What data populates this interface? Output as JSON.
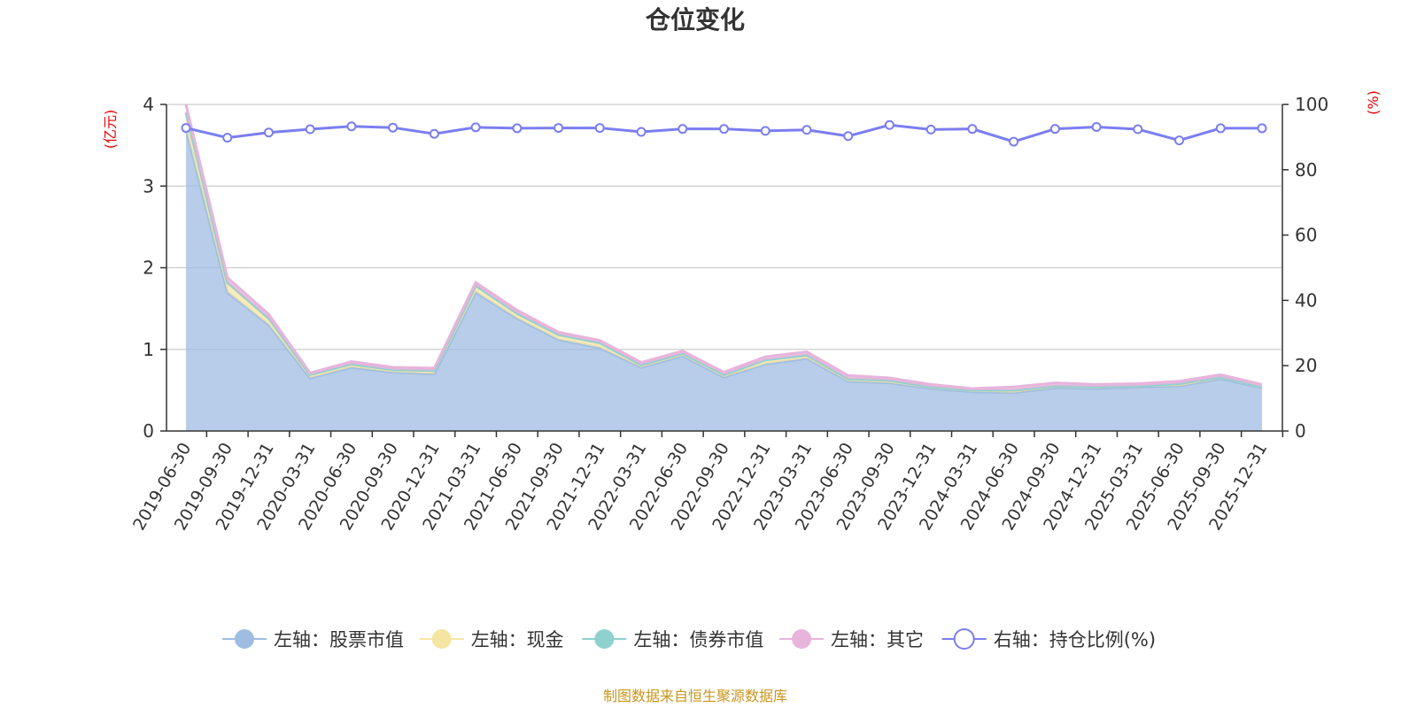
{
  "chart_data": {
    "type": "area",
    "title": "仓位变化",
    "left_axis_unit": "(亿元)",
    "right_axis_unit": "(%)",
    "left_ylim": [
      0,
      4
    ],
    "left_ticks": [
      "0",
      "1",
      "2",
      "3",
      "4"
    ],
    "right_ylim": [
      0,
      100
    ],
    "right_ticks": [
      "0",
      "20",
      "40",
      "60",
      "80",
      "100"
    ],
    "grid": true,
    "legend_position": "bottom",
    "categories": [
      "2019-06-30",
      "2019-09-30",
      "2019-12-31",
      "2020-03-31",
      "2020-06-30",
      "2020-09-30",
      "2020-12-31",
      "2021-03-31",
      "2021-06-30",
      "2021-09-30",
      "2021-12-31",
      "2022-03-31",
      "2022-06-30",
      "2022-09-30",
      "2022-12-31",
      "2023-03-31",
      "2023-06-30",
      "2023-09-30",
      "2023-12-31",
      "2024-03-31",
      "2024-06-30",
      "2024-09-30",
      "2024-12-31",
      "2025-03-31",
      "2025-06-30",
      "2025-09-30",
      "2025-12-31"
    ],
    "series": [
      {
        "name": "左轴：股票市值",
        "axis": "left",
        "color": "#9fbce2",
        "values": [
          3.7,
          1.7,
          1.3,
          0.65,
          0.78,
          0.72,
          0.7,
          1.7,
          1.38,
          1.12,
          1.02,
          0.78,
          0.92,
          0.66,
          0.82,
          0.89,
          0.61,
          0.59,
          0.52,
          0.48,
          0.47,
          0.53,
          0.52,
          0.54,
          0.55,
          0.64,
          0.53
        ]
      },
      {
        "name": "左轴：现金",
        "axis": "left",
        "color": "#f6e5a2",
        "values": [
          0.2,
          0.12,
          0.08,
          0.04,
          0.04,
          0.03,
          0.04,
          0.08,
          0.06,
          0.06,
          0.06,
          0.03,
          0.03,
          0.03,
          0.05,
          0.04,
          0.03,
          0.03,
          0.02,
          0.02,
          0.03,
          0.02,
          0.02,
          0.01,
          0.03,
          0.02,
          0.01
        ]
      },
      {
        "name": "左轴：债券市值",
        "axis": "left",
        "color": "#8fd1ce",
        "values": [
          0,
          0,
          0,
          0,
          0,
          0,
          0,
          0,
          0,
          0,
          0,
          0,
          0,
          0,
          0,
          0,
          0,
          0,
          0,
          0,
          0,
          0,
          0,
          0,
          0,
          0,
          0
        ]
      },
      {
        "name": "左轴：其它",
        "axis": "left",
        "color": "#e8b4dc",
        "values": [
          0.1,
          0.06,
          0.05,
          0.02,
          0.03,
          0.03,
          0.03,
          0.04,
          0.04,
          0.03,
          0.03,
          0.03,
          0.03,
          0.03,
          0.04,
          0.04,
          0.04,
          0.03,
          0.03,
          0.02,
          0.04,
          0.04,
          0.03,
          0.03,
          0.03,
          0.03,
          0.03
        ]
      },
      {
        "name": "右轴：持仓比例(%)",
        "axis": "right",
        "color": "#7b7ef0",
        "values": [
          92.8,
          89.8,
          91.4,
          92.4,
          93.3,
          92.9,
          91.0,
          93.0,
          92.7,
          92.8,
          92.8,
          91.6,
          92.5,
          92.5,
          91.9,
          92.2,
          90.3,
          93.7,
          92.3,
          92.5,
          88.6,
          92.5,
          93.1,
          92.4,
          89.0,
          92.7,
          92.7
        ]
      }
    ],
    "source_note": "制图数据来自恒生聚源数据库"
  },
  "colors": {
    "axis": "#333333",
    "grid": "#cccccc",
    "unit_label": "#e60000",
    "source_note": "#c8961e"
  }
}
